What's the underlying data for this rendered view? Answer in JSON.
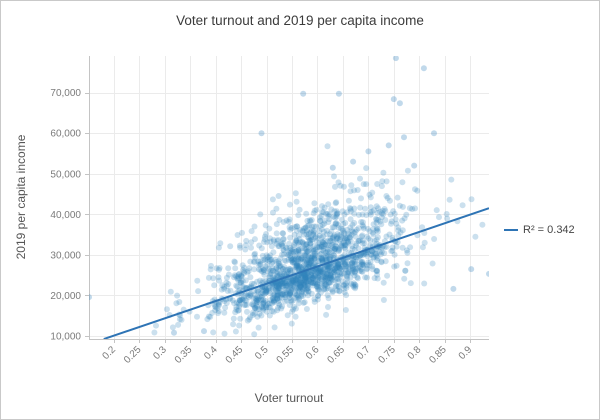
{
  "frame": {
    "border_color": "#c9c9c9",
    "background": "#ffffff"
  },
  "chart_data": {
    "type": "scatter",
    "title": "Voter turnout and 2019 per capita income",
    "xlabel": "Voter turnout",
    "ylabel": "2019 per capita income",
    "xlim": [
      0.151,
      0.937
    ],
    "ylim": [
      9260,
      79030
    ],
    "grid": true,
    "x_ticks": {
      "values": [
        0.2,
        0.25,
        0.3,
        0.35,
        0.4,
        0.45,
        0.5,
        0.55,
        0.6,
        0.65,
        0.7,
        0.75,
        0.8,
        0.85,
        0.9
      ],
      "labels": [
        "0.2",
        "0.25",
        "0.3",
        "0.35",
        "0.4",
        "0.45",
        "0.5",
        "0.55",
        "0.6",
        "0.65",
        "0.7",
        "0.75",
        "0.8",
        "0.85",
        "0.9"
      ]
    },
    "y_ticks": {
      "values": [
        10000,
        20000,
        30000,
        40000,
        50000,
        60000,
        70000
      ],
      "labels": [
        "10,000",
        "20,000",
        "30,000",
        "40,000",
        "50,000",
        "60,000",
        "70,000"
      ]
    },
    "marker": {
      "color": "#3182bd",
      "opacity": 0.25,
      "radius": 3
    },
    "trendline": {
      "label": "R² = 0.342",
      "r_squared": 0.342,
      "slope": 42600,
      "intercept": 1580,
      "x_start": 0.18,
      "x_end": 0.937,
      "color": "#2e74b5",
      "width": 2
    },
    "legend": {
      "position": "right",
      "entries": [
        {
          "label": "R² = 0.342",
          "swatch": "line",
          "color": "#2e74b5"
        }
      ]
    },
    "cloud": {
      "note": "approximate distribution of the dense unlabeled point cloud read from the plot",
      "count": 1600,
      "seed": 7,
      "x_mean": 0.585,
      "x_sd": 0.085,
      "x_wide_tail_frac": 0.07,
      "x_min": 0.272,
      "x_max": 0.932,
      "y_noise_sd": 4800,
      "y_skew_up": 1.45,
      "y_skew_down": 0.82,
      "y_floor": 10350,
      "y_cap": 62000
    },
    "outlier_points": [
      [
        0.151,
        19600
      ],
      [
        0.754,
        78500
      ],
      [
        0.809,
        76000
      ],
      [
        0.572,
        69700
      ],
      [
        0.642,
        69700
      ],
      [
        0.75,
        68400
      ],
      [
        0.762,
        67400
      ],
      [
        0.829,
        60000
      ],
      [
        0.77,
        59000
      ],
      [
        0.49,
        60000
      ],
      [
        0.63,
        51500
      ],
      [
        0.67,
        53000
      ],
      [
        0.7,
        55500
      ],
      [
        0.74,
        57000
      ],
      [
        0.79,
        52000
      ],
      [
        0.902,
        26500
      ],
      [
        0.867,
        21600
      ],
      [
        0.937,
        25300
      ],
      [
        0.318,
        10800
      ],
      [
        0.377,
        11200
      ]
    ],
    "style": {
      "grid_color": "#ebebeb",
      "axis_color": "#c4c4c4",
      "tick_label_color": "#7b7b7b",
      "axis_title_color": "#565656",
      "title_color": "#3b3b3b",
      "legend_text_color": "#454545"
    }
  }
}
